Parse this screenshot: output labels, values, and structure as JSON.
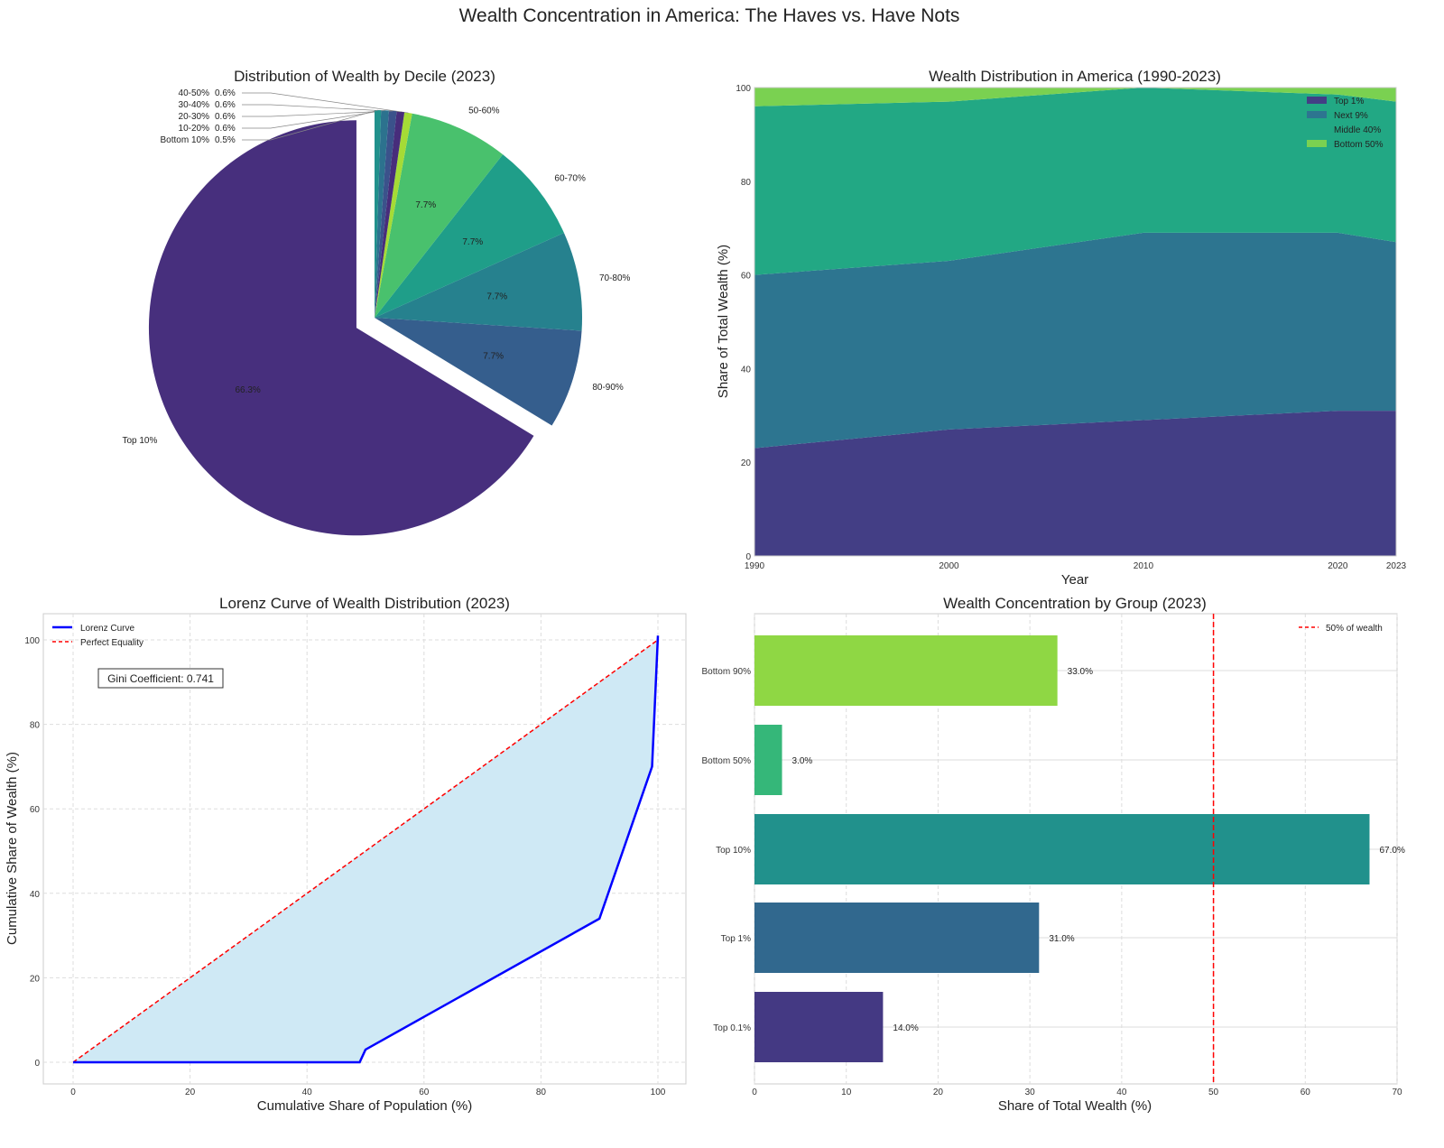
{
  "title": "Wealth Concentration in America: The Haves vs. Have Nots",
  "chart_data": [
    {
      "type": "pie",
      "title": "Distribution of Wealth by Decile (2023)",
      "labels": [
        "Top 10%",
        "80-90%",
        "70-80%",
        "60-70%",
        "50-60%",
        "40-50%",
        "30-40%",
        "20-30%",
        "10-20%",
        "Bottom 10%"
      ],
      "values": [
        66.3,
        7.7,
        7.7,
        7.7,
        7.7,
        0.6,
        0.6,
        0.6,
        0.6,
        0.5
      ],
      "pct_labels": [
        "66.3%",
        "7.7%",
        "7.7%",
        "7.7%",
        "7.7%",
        "0.6%",
        "0.6%",
        "0.6%",
        "0.6%",
        "0.5%"
      ],
      "colors": [
        "#472f7d",
        "#355e8d",
        "#26818e",
        "#1f9e89",
        "#49c16d",
        "#a5db36",
        "#472d7b",
        "#3b528b",
        "#2c728e",
        "#21918c"
      ],
      "explode": "Top 10%",
      "start_angle": 90
    },
    {
      "type": "area",
      "title": "Wealth Distribution in America (1990-2023)",
      "xlabel": "Year",
      "ylabel": "Share of Total Wealth (%)",
      "x": [
        1990,
        2000,
        2010,
        2020,
        2023
      ],
      "xticks": [
        "1990",
        "2000",
        "2010",
        "2020",
        "2023"
      ],
      "yticks": [
        "0",
        "20",
        "40",
        "60",
        "80",
        "100"
      ],
      "ylim": [
        0,
        100
      ],
      "series": [
        {
          "name": "Top 1%",
          "values": [
            23,
            27,
            29,
            31,
            31
          ],
          "color": "#433e85"
        },
        {
          "name": "Next 9%",
          "values": [
            37,
            36,
            40,
            38,
            36
          ],
          "color": "#2d7590"
        },
        {
          "name": "Middle 40%",
          "values": [
            36,
            34,
            31,
            29.5,
            30
          ],
          "color": "#22a884"
        },
        {
          "name": "Bottom 50%",
          "values": [
            4,
            3,
            0,
            1.5,
            3
          ],
          "color": "#7ad151"
        }
      ],
      "legend": "top-right"
    },
    {
      "type": "line",
      "title": "Lorenz Curve of Wealth Distribution (2023)",
      "xlabel": "Cumulative Share of Population (%)",
      "ylabel": "Cumulative Share of Wealth (%)",
      "xticks": [
        "0",
        "20",
        "40",
        "60",
        "80",
        "100"
      ],
      "yticks": [
        "0",
        "20",
        "40",
        "60",
        "80",
        "100"
      ],
      "series": [
        {
          "name": "Lorenz Curve",
          "x": [
            0,
            49,
            50,
            90,
            99,
            100
          ],
          "y": [
            0,
            0,
            3,
            34,
            70,
            101
          ],
          "color": "#0000ff"
        },
        {
          "name": "Perfect Equality",
          "x": [
            0,
            100
          ],
          "y": [
            0,
            100
          ],
          "color": "#ff0000"
        }
      ],
      "annotation": "Gini Coefficient: 0.741",
      "legend": "top-left"
    },
    {
      "type": "bar",
      "orientation": "horizontal",
      "title": "Wealth Concentration by Group (2023)",
      "xlabel": "Share of Total Wealth (%)",
      "categories": [
        "Top 0.1%",
        "Top 1%",
        "Top 10%",
        "Bottom 50%",
        "Bottom 90%"
      ],
      "values": [
        14,
        31,
        67,
        3,
        33
      ],
      "value_labels": [
        "14.0%",
        "31.0%",
        "67.0%",
        "3.0%",
        "33.0%"
      ],
      "colors": [
        "#443983",
        "#31688e",
        "#21918c",
        "#35b779",
        "#8fd744"
      ],
      "xticks": [
        "0",
        "10",
        "20",
        "30",
        "40",
        "50",
        "60",
        "70"
      ],
      "xlim": [
        0,
        70
      ],
      "reference_line": {
        "value": 50,
        "label": "50% of wealth",
        "color": "#ff0000"
      },
      "legend": "top-right"
    }
  ]
}
